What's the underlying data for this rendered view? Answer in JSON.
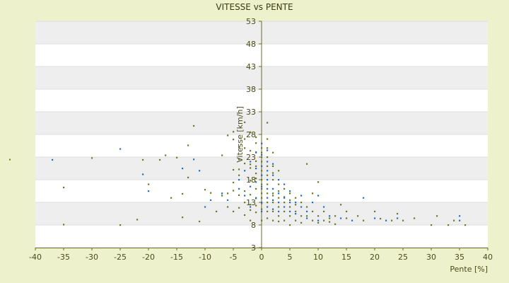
{
  "chart_data": {
    "type": "scatter",
    "title": "VITESSE vs PENTE",
    "xlabel": "Pente [%]",
    "ylabel": "Vitesse [km/h]",
    "xlim": [
      -40,
      40
    ],
    "ylim": [
      3,
      53
    ],
    "x_ticks": [
      -40,
      -35,
      -30,
      -25,
      -20,
      -15,
      -10,
      -5,
      0,
      5,
      10,
      15,
      20,
      25,
      30,
      35,
      40
    ],
    "y_ticks": [
      3,
      8,
      13,
      18,
      23,
      28,
      33,
      38,
      43,
      48,
      53
    ],
    "grid": "horizontal bands",
    "legend": "none",
    "colors": {
      "series_a": "#6b7a1e",
      "series_b": "#1f6fd1",
      "band": "#eeeeee",
      "plot_bg": "#ffffff",
      "axis": "#6b6b2a"
    },
    "series": [
      {
        "color": "#6b7a1e",
        "points": [
          [
            -35,
            16.3
          ],
          [
            -35,
            8.1
          ],
          [
            -30,
            22.8
          ],
          [
            -25,
            8
          ],
          [
            -22,
            9.2
          ],
          [
            -21,
            22.4
          ],
          [
            -20,
            17
          ],
          [
            -18,
            22.4
          ],
          [
            -17,
            23.4
          ],
          [
            -16,
            14
          ],
          [
            -15,
            22.9
          ],
          [
            -14,
            9.7
          ],
          [
            -14,
            14.9
          ],
          [
            -13,
            18.5
          ],
          [
            -13,
            25.6
          ],
          [
            -12,
            29.9
          ],
          [
            -11,
            8.8
          ],
          [
            -10,
            15.8
          ],
          [
            -9,
            15.1
          ],
          [
            -8,
            11
          ],
          [
            -7,
            14.5
          ],
          [
            -7,
            23.4
          ],
          [
            -6,
            15
          ],
          [
            -6,
            12
          ],
          [
            -6,
            27.8
          ],
          [
            -5,
            11
          ],
          [
            -5,
            15.6
          ],
          [
            -5,
            26.9
          ],
          [
            -5,
            17.4
          ],
          [
            -5,
            28.6
          ],
          [
            -5,
            20.2
          ],
          [
            -4,
            14.6
          ],
          [
            -4,
            25.2
          ],
          [
            -4,
            20.3
          ],
          [
            -4,
            22.5
          ],
          [
            -4,
            11.8
          ],
          [
            -4,
            19
          ],
          [
            -3,
            13
          ],
          [
            -3,
            27
          ],
          [
            -3,
            30.7
          ],
          [
            -3,
            21.6
          ],
          [
            -3,
            10.2
          ],
          [
            -3,
            15.5
          ],
          [
            -3,
            25
          ],
          [
            -2,
            9
          ],
          [
            -2,
            12.5
          ],
          [
            -2,
            17.8
          ],
          [
            -2,
            21.4
          ],
          [
            -2,
            24.4
          ],
          [
            -2,
            28.5
          ],
          [
            -2,
            11.3
          ],
          [
            -2,
            14.7
          ],
          [
            -2,
            20.6
          ],
          [
            -1,
            18.3
          ],
          [
            -1,
            22.1
          ],
          [
            -1,
            26.1
          ],
          [
            -1,
            10.8
          ],
          [
            -1,
            13.9
          ],
          [
            -1,
            16
          ],
          [
            -1,
            19.4
          ],
          [
            -1,
            24.1
          ],
          [
            -1,
            27.4
          ],
          [
            -1,
            12.3
          ],
          [
            -1,
            21
          ],
          [
            0,
            9
          ],
          [
            0,
            14
          ],
          [
            0,
            16
          ],
          [
            0,
            18
          ],
          [
            0,
            20
          ],
          [
            0,
            22
          ],
          [
            0,
            24
          ],
          [
            0,
            26
          ],
          [
            0,
            11.5
          ],
          [
            0,
            12.8
          ],
          [
            0,
            15
          ],
          [
            0,
            17
          ],
          [
            0,
            19
          ],
          [
            0,
            21
          ],
          [
            0,
            23
          ],
          [
            0,
            25
          ],
          [
            1,
            30.6
          ],
          [
            1,
            27
          ],
          [
            1,
            25
          ],
          [
            1,
            23
          ],
          [
            1,
            21
          ],
          [
            1,
            19
          ],
          [
            1,
            17
          ],
          [
            1,
            15
          ],
          [
            1,
            13
          ],
          [
            1,
            11
          ],
          [
            1,
            9.5
          ],
          [
            2,
            24
          ],
          [
            2,
            21
          ],
          [
            2,
            18
          ],
          [
            2,
            15
          ],
          [
            2,
            13
          ],
          [
            2,
            11
          ],
          [
            2,
            9
          ],
          [
            2,
            19.5
          ],
          [
            2,
            14.5
          ],
          [
            3,
            20
          ],
          [
            3,
            17
          ],
          [
            3,
            14
          ],
          [
            3,
            12
          ],
          [
            3,
            10
          ],
          [
            3,
            8.8
          ],
          [
            3,
            15.5
          ],
          [
            4,
            16
          ],
          [
            4,
            13
          ],
          [
            4,
            11
          ],
          [
            4,
            9
          ],
          [
            4,
            14.2
          ],
          [
            5,
            15
          ],
          [
            5,
            12
          ],
          [
            5,
            10
          ],
          [
            5,
            8
          ],
          [
            5,
            13.5
          ],
          [
            6,
            14
          ],
          [
            6,
            11
          ],
          [
            6,
            9
          ],
          [
            6,
            12.5
          ],
          [
            7,
            13
          ],
          [
            7,
            10
          ],
          [
            7,
            8.5
          ],
          [
            8,
            12
          ],
          [
            8,
            10
          ],
          [
            8,
            21.5
          ],
          [
            9,
            11
          ],
          [
            9,
            9
          ],
          [
            9,
            15
          ],
          [
            10,
            10
          ],
          [
            10,
            8.5
          ],
          [
            10,
            17.5
          ],
          [
            11,
            11
          ],
          [
            11,
            9
          ],
          [
            12,
            9.5
          ],
          [
            12,
            8.7
          ],
          [
            13,
            10
          ],
          [
            13,
            8.2
          ],
          [
            14,
            12.5
          ],
          [
            15,
            9.5
          ],
          [
            15,
            11
          ],
          [
            17,
            10
          ],
          [
            18,
            9
          ],
          [
            20,
            11
          ],
          [
            21,
            9.4
          ],
          [
            23,
            9
          ],
          [
            24,
            10.5
          ],
          [
            25,
            9
          ],
          [
            27,
            9.5
          ],
          [
            30,
            8
          ],
          [
            31,
            10
          ],
          [
            33,
            8
          ],
          [
            34,
            9
          ],
          [
            36,
            8
          ]
        ]
      },
      {
        "color": "#1f6fd1",
        "points": [
          [
            -37,
            22.4
          ],
          [
            -25,
            24.8
          ],
          [
            -21,
            19.2
          ],
          [
            -20,
            15.5
          ],
          [
            -14,
            20.5
          ],
          [
            -12,
            22.5
          ],
          [
            -11,
            20
          ],
          [
            -10,
            12
          ],
          [
            -9,
            13.5
          ],
          [
            -7,
            15
          ],
          [
            -6,
            13.5
          ],
          [
            -4,
            16
          ],
          [
            -4,
            18
          ],
          [
            -3,
            20
          ],
          [
            -3,
            14.5
          ],
          [
            -2,
            22
          ],
          [
            -2,
            16.5
          ],
          [
            -2,
            12
          ],
          [
            -1,
            24
          ],
          [
            -1,
            20.5
          ],
          [
            -1,
            17.5
          ],
          [
            -1,
            14
          ],
          [
            0,
            26
          ],
          [
            0,
            23.5
          ],
          [
            0,
            21
          ],
          [
            0,
            19
          ],
          [
            0,
            16.5
          ],
          [
            0,
            13
          ],
          [
            0,
            11
          ],
          [
            1,
            24.5
          ],
          [
            1,
            22
          ],
          [
            1,
            20
          ],
          [
            1,
            18
          ],
          [
            1,
            16
          ],
          [
            1,
            14
          ],
          [
            1,
            12
          ],
          [
            2,
            21.5
          ],
          [
            2,
            19
          ],
          [
            2,
            16
          ],
          [
            2,
            13.5
          ],
          [
            2,
            11.5
          ],
          [
            3,
            18
          ],
          [
            3,
            15
          ],
          [
            3,
            13
          ],
          [
            3,
            11
          ],
          [
            4,
            17
          ],
          [
            4,
            14
          ],
          [
            4,
            12
          ],
          [
            5,
            15.5
          ],
          [
            5,
            13
          ],
          [
            5,
            11
          ],
          [
            6,
            13
          ],
          [
            6,
            10.5
          ],
          [
            7,
            14.5
          ],
          [
            7,
            12
          ],
          [
            8,
            11
          ],
          [
            8,
            9.5
          ],
          [
            9,
            13
          ],
          [
            10,
            14.5
          ],
          [
            10,
            9
          ],
          [
            11,
            12
          ],
          [
            12,
            10
          ],
          [
            14,
            9.5
          ],
          [
            16,
            9
          ],
          [
            18,
            14
          ],
          [
            20,
            9.5
          ],
          [
            22,
            9
          ],
          [
            24,
            9.5
          ],
          [
            35,
            10
          ],
          [
            35,
            9
          ]
        ]
      }
    ]
  }
}
